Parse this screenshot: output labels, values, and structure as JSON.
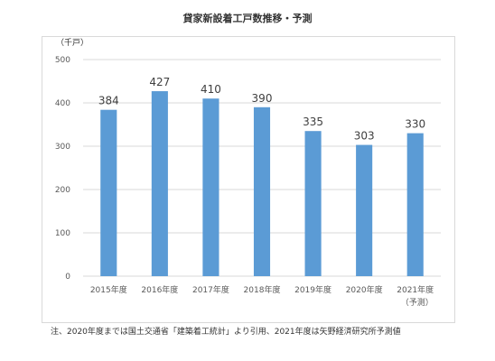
{
  "chart_data": {
    "type": "bar",
    "title": "貸家新設着工戸数推移・予測",
    "ylabel": "（千戸）",
    "categories": [
      "2015年度",
      "2016年度",
      "2017年度",
      "2018年度",
      "2019年度",
      "2020年度",
      "2021年度"
    ],
    "category_sublabels": [
      "",
      "",
      "",
      "",
      "",
      "",
      "（予測）"
    ],
    "values": [
      384,
      427,
      410,
      390,
      335,
      303,
      330
    ],
    "ylim": [
      0,
      500
    ],
    "yticks": [
      0,
      100,
      200,
      300,
      400,
      500
    ],
    "grid": true,
    "bar_color": "#5b9bd5",
    "grid_color": "#d9d9d9"
  },
  "note": "注、2020年度までは国土交通省「建築着工統計」より引用、2021年度は矢野経済研究所予測値"
}
